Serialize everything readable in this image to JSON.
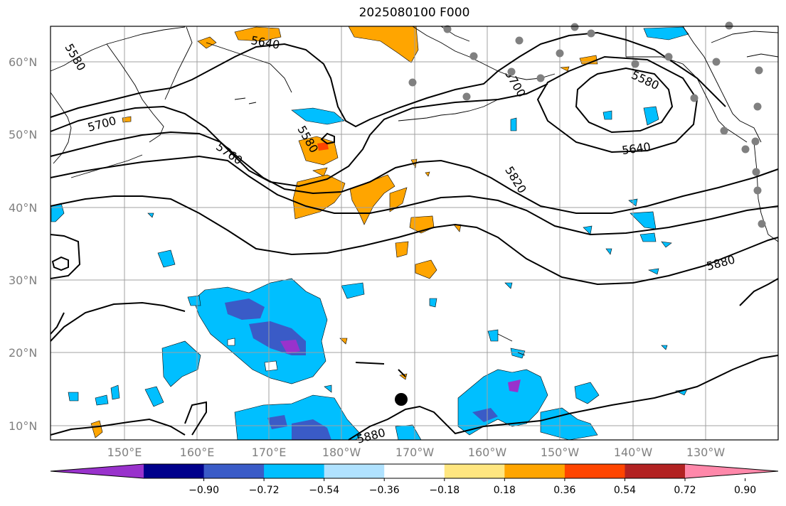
{
  "title": "2025080100 F000",
  "lat_labels": [
    "60°N",
    "50°N",
    "40°N",
    "30°N",
    "20°N",
    "10°N"
  ],
  "lon_labels": [
    "150°E",
    "160°E",
    "170°E",
    "180°W",
    "170°W",
    "160°W",
    "150°W",
    "140°W",
    "130°W"
  ],
  "contour_labels": [
    "5580",
    "5640",
    "5700",
    "5760",
    "5580",
    "5700",
    "5580",
    "5640",
    "5820",
    "5880",
    "5880"
  ],
  "colorbar": {
    "tick_labels": [
      "−0.90",
      "−0.72",
      "−0.54",
      "−0.36",
      "−0.18",
      "0.18",
      "0.36",
      "0.54",
      "0.72",
      "0.90"
    ],
    "colors": [
      "#9932cc",
      "#00008b",
      "#3a5bc7",
      "#00bfff",
      "#b0e2ff",
      "#ffffff",
      "#ffe680",
      "#ffa500",
      "#ff4500",
      "#b22222",
      "#ff88aa"
    ]
  },
  "colors": {
    "negative_light": "#00bfff",
    "negative_mid": "#3a5bc7",
    "negative_strong": "#9932cc",
    "positive": "#ffa500",
    "positive_strong": "#ff4500",
    "contour": "#000000",
    "grid": "#a0a0a0",
    "station": "#808080"
  }
}
